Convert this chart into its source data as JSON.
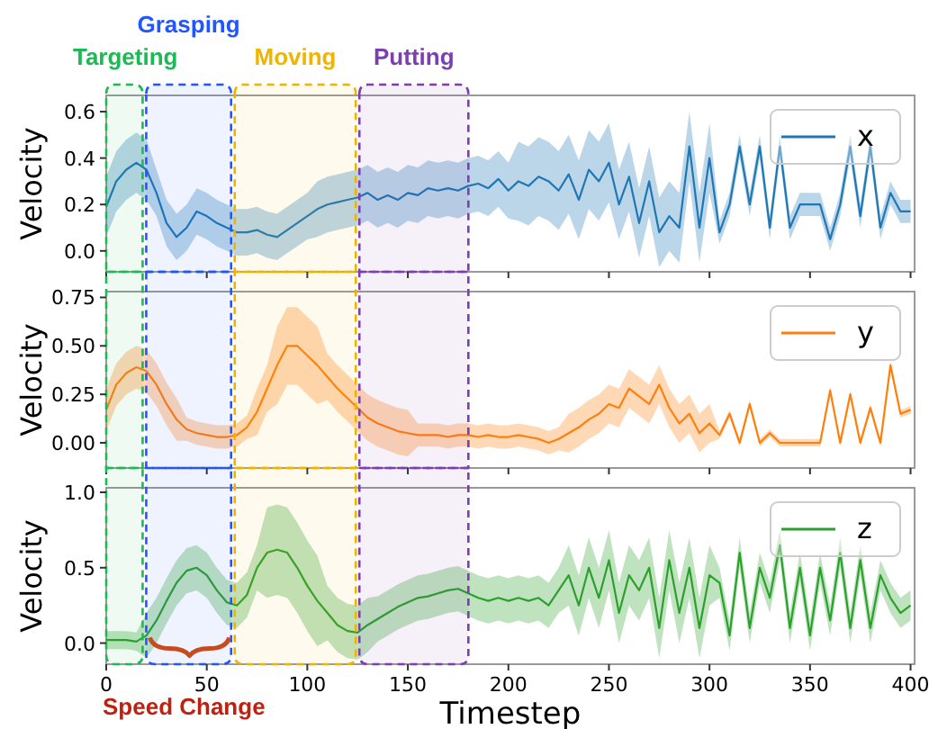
{
  "chart_data": [
    {
      "type": "line",
      "ylabel": "Velocity",
      "xlim": [
        0,
        402
      ],
      "ylim": [
        -0.09,
        0.67
      ],
      "xticks": [
        0,
        50,
        100,
        150,
        200,
        250,
        300,
        350,
        400
      ],
      "yticks": [
        {
          "value": 0,
          "label": "0.0"
        },
        {
          "value": 0.2,
          "label": "0.2"
        },
        {
          "value": 0.4,
          "label": "0.4"
        },
        {
          "value": 0.6,
          "label": "0.6"
        }
      ],
      "tick_labels": "y",
      "legend": "top right",
      "grid": false,
      "x": [
        0,
        5,
        10,
        15,
        20,
        25,
        30,
        35,
        40,
        45,
        50,
        55,
        60,
        65,
        70,
        75,
        80,
        85,
        90,
        95,
        100,
        105,
        110,
        115,
        120,
        125,
        130,
        135,
        140,
        145,
        150,
        155,
        160,
        165,
        170,
        175,
        180,
        185,
        190,
        195,
        200,
        205,
        210,
        215,
        220,
        225,
        230,
        235,
        240,
        245,
        250,
        255,
        260,
        265,
        270,
        275,
        280,
        285,
        290,
        295,
        300,
        305,
        310,
        315,
        320,
        325,
        330,
        335,
        340,
        345,
        350,
        355,
        360,
        365,
        370,
        375,
        380,
        385,
        390,
        395,
        400
      ],
      "series": [
        {
          "name": "x",
          "color": "#1f77b4",
          "values": [
            0.19,
            0.3,
            0.35,
            0.38,
            0.35,
            0.25,
            0.12,
            0.06,
            0.1,
            0.17,
            0.15,
            0.12,
            0.1,
            0.08,
            0.08,
            0.09,
            0.07,
            0.06,
            0.09,
            0.12,
            0.15,
            0.18,
            0.2,
            0.21,
            0.22,
            0.23,
            0.25,
            0.22,
            0.24,
            0.22,
            0.25,
            0.24,
            0.27,
            0.26,
            0.27,
            0.26,
            0.28,
            0.29,
            0.27,
            0.31,
            0.26,
            0.3,
            0.28,
            0.32,
            0.3,
            0.26,
            0.33,
            0.22,
            0.35,
            0.3,
            0.38,
            0.2,
            0.32,
            0.12,
            0.3,
            0.08,
            0.15,
            0.1,
            0.45,
            0.1,
            0.4,
            0.08,
            0.2,
            0.45,
            0.2,
            0.45,
            0.1,
            0.45,
            0.1,
            0.2,
            0.2,
            0.2,
            0.05,
            0.2,
            0.45,
            0.15,
            0.45,
            0.1,
            0.25,
            0.17,
            0.17
          ],
          "lower": [
            0.06,
            0.17,
            0.22,
            0.25,
            0.22,
            0.15,
            0.02,
            -0.04,
            0,
            0.07,
            0.05,
            0.02,
            0,
            -0.02,
            -0.02,
            -0.01,
            -0.03,
            -0.04,
            -0.01,
            0.02,
            0.05,
            0.06,
            0.08,
            0.09,
            0.1,
            0.11,
            0.13,
            0.1,
            0.12,
            0.1,
            0.13,
            0.12,
            0.15,
            0.14,
            0.15,
            0.14,
            0.16,
            0.17,
            0.15,
            0.19,
            0.14,
            0.13,
            0.11,
            0.15,
            0.13,
            0.09,
            0.16,
            0.05,
            0.18,
            0.13,
            0.21,
            0.05,
            0.17,
            -0.03,
            0.15,
            -0.07,
            0,
            -0.05,
            0.3,
            -0.05,
            0.25,
            0.03,
            0.15,
            0.4,
            0.15,
            0.4,
            0.05,
            0.4,
            0.05,
            0.15,
            0.15,
            0.15,
            0,
            0.15,
            0.4,
            0.1,
            0.4,
            0.05,
            0.2,
            0.12,
            0.12
          ],
          "upper": [
            0.32,
            0.43,
            0.48,
            0.51,
            0.48,
            0.35,
            0.22,
            0.16,
            0.2,
            0.27,
            0.25,
            0.22,
            0.2,
            0.18,
            0.18,
            0.19,
            0.17,
            0.16,
            0.19,
            0.22,
            0.25,
            0.3,
            0.32,
            0.33,
            0.34,
            0.35,
            0.37,
            0.34,
            0.36,
            0.34,
            0.37,
            0.36,
            0.39,
            0.38,
            0.39,
            0.38,
            0.4,
            0.41,
            0.39,
            0.43,
            0.38,
            0.47,
            0.45,
            0.49,
            0.47,
            0.43,
            0.5,
            0.39,
            0.52,
            0.47,
            0.55,
            0.35,
            0.47,
            0.27,
            0.45,
            0.23,
            0.3,
            0.25,
            0.6,
            0.25,
            0.55,
            0.13,
            0.25,
            0.5,
            0.25,
            0.5,
            0.15,
            0.5,
            0.15,
            0.25,
            0.25,
            0.25,
            0.1,
            0.25,
            0.5,
            0.2,
            0.5,
            0.15,
            0.3,
            0.22,
            0.22
          ]
        }
      ],
      "bands": [
        {
          "axis": "x",
          "from": 0,
          "to": 19,
          "label": "Targeting",
          "color": "#1db954"
        },
        {
          "axis": "x",
          "from": 19,
          "to": 63,
          "label": "Grasping",
          "color": "#2155ff"
        },
        {
          "axis": "x",
          "from": 63,
          "to": 125,
          "label": "Moving",
          "color": "#f0b400"
        },
        {
          "axis": "x",
          "from": 125,
          "to": 181,
          "label": "Putting",
          "color": "#7b3fb0"
        }
      ]
    },
    {
      "type": "line",
      "ylabel": "Velocity",
      "xlim": [
        0,
        402
      ],
      "ylim": [
        -0.13,
        0.78
      ],
      "xticks": [
        0,
        50,
        100,
        150,
        200,
        250,
        300,
        350,
        400
      ],
      "yticks": [
        {
          "value": 0,
          "label": "0.00"
        },
        {
          "value": 0.25,
          "label": "0.25"
        },
        {
          "value": 0.5,
          "label": "0.50"
        },
        {
          "value": 0.75,
          "label": "0.75"
        }
      ],
      "tick_labels": "y",
      "legend": "top right",
      "grid": false,
      "x": [
        0,
        5,
        10,
        15,
        20,
        25,
        30,
        35,
        40,
        45,
        50,
        55,
        60,
        65,
        70,
        75,
        80,
        85,
        90,
        95,
        100,
        105,
        110,
        115,
        120,
        125,
        130,
        135,
        140,
        145,
        150,
        155,
        160,
        165,
        170,
        175,
        180,
        185,
        190,
        195,
        200,
        205,
        210,
        215,
        220,
        225,
        230,
        235,
        240,
        245,
        250,
        255,
        260,
        265,
        270,
        275,
        280,
        285,
        290,
        295,
        300,
        305,
        310,
        315,
        320,
        325,
        330,
        335,
        340,
        345,
        350,
        355,
        360,
        365,
        370,
        375,
        380,
        385,
        390,
        395,
        400
      ],
      "series": [
        {
          "name": "y",
          "color": "#ff7f0e",
          "values": [
            0.17,
            0.3,
            0.36,
            0.39,
            0.37,
            0.3,
            0.2,
            0.12,
            0.07,
            0.05,
            0.04,
            0.03,
            0.03,
            0.04,
            0.08,
            0.16,
            0.28,
            0.4,
            0.5,
            0.5,
            0.45,
            0.4,
            0.34,
            0.28,
            0.23,
            0.18,
            0.13,
            0.1,
            0.08,
            0.06,
            0.05,
            0.04,
            0.04,
            0.04,
            0.03,
            0.04,
            0.04,
            0.03,
            0.04,
            0.03,
            0.03,
            0.04,
            0.03,
            0.02,
            0,
            0.02,
            0.05,
            0.08,
            0.12,
            0.15,
            0.2,
            0.18,
            0.28,
            0.24,
            0.2,
            0.3,
            0.18,
            0.1,
            0.15,
            0.05,
            0.1,
            0.04,
            0.15,
            0,
            0.2,
            0,
            0.05,
            0,
            0,
            0,
            0,
            0,
            0.27,
            0,
            0.25,
            0,
            0.18,
            0,
            0.4,
            0.15,
            0.17
          ],
          "lower": [
            0.06,
            0.19,
            0.25,
            0.28,
            0.26,
            0.19,
            0.09,
            0.01,
            0.01,
            -0.01,
            -0.02,
            -0.03,
            -0.03,
            -0.02,
            0.02,
            0.04,
            0.16,
            0.2,
            0.3,
            0.3,
            0.25,
            0.2,
            0.22,
            0.16,
            0.11,
            0.06,
            0.01,
            -0.02,
            -0.04,
            -0.06,
            -0.07,
            -0.02,
            -0.02,
            -0.02,
            -0.03,
            -0.02,
            -0.02,
            -0.03,
            -0.02,
            -0.03,
            -0.03,
            -0.02,
            -0.03,
            -0.04,
            -0.06,
            -0.04,
            -0.05,
            -0.02,
            0.02,
            0.05,
            0.1,
            0.08,
            0.18,
            0.14,
            0.1,
            0.2,
            0.08,
            0,
            0.05,
            -0.05,
            0,
            0.02,
            0.13,
            -0.02,
            0.18,
            -0.02,
            0.03,
            -0.02,
            -0.02,
            -0.02,
            -0.02,
            -0.02,
            0.25,
            -0.02,
            0.23,
            -0.02,
            0.16,
            -0.02,
            0.38,
            0.13,
            0.15
          ],
          "upper": [
            0.28,
            0.41,
            0.47,
            0.5,
            0.48,
            0.41,
            0.31,
            0.23,
            0.13,
            0.11,
            0.1,
            0.09,
            0.09,
            0.1,
            0.14,
            0.28,
            0.4,
            0.6,
            0.7,
            0.7,
            0.65,
            0.6,
            0.46,
            0.4,
            0.35,
            0.3,
            0.25,
            0.22,
            0.2,
            0.18,
            0.17,
            0.1,
            0.1,
            0.1,
            0.09,
            0.1,
            0.1,
            0.09,
            0.1,
            0.09,
            0.09,
            0.1,
            0.09,
            0.08,
            0.06,
            0.08,
            0.15,
            0.18,
            0.22,
            0.25,
            0.3,
            0.28,
            0.38,
            0.34,
            0.3,
            0.4,
            0.28,
            0.2,
            0.25,
            0.15,
            0.2,
            0.06,
            0.17,
            0.02,
            0.22,
            0.02,
            0.07,
            0.02,
            0.02,
            0.02,
            0.02,
            0.02,
            0.29,
            0.02,
            0.27,
            0.02,
            0.2,
            0.02,
            0.42,
            0.17,
            0.19
          ]
        }
      ],
      "bands": [
        {
          "axis": "x",
          "from": 0,
          "to": 19,
          "color": "#1db954"
        },
        {
          "axis": "x",
          "from": 19,
          "to": 63,
          "color": "#2155ff"
        },
        {
          "axis": "x",
          "from": 63,
          "to": 125,
          "color": "#f0b400"
        },
        {
          "axis": "x",
          "from": 125,
          "to": 181,
          "color": "#7b3fb0"
        }
      ]
    },
    {
      "type": "line",
      "ylabel": "Velocity",
      "xlabel": "Timestep",
      "xlim": [
        0,
        402
      ],
      "ylim": [
        -0.14,
        1.03
      ],
      "xticks": [
        0,
        50,
        100,
        150,
        200,
        250,
        300,
        350,
        400
      ],
      "yticks": [
        {
          "value": 0,
          "label": "0.0"
        },
        {
          "value": 0.5,
          "label": "0.5"
        },
        {
          "value": 1,
          "label": "1.0"
        }
      ],
      "legend": "top right",
      "grid": false,
      "annotations": [
        "Speed Change"
      ],
      "x": [
        0,
        5,
        10,
        15,
        20,
        25,
        30,
        35,
        40,
        45,
        50,
        55,
        60,
        65,
        70,
        75,
        80,
        85,
        90,
        95,
        100,
        105,
        110,
        115,
        120,
        125,
        130,
        135,
        140,
        145,
        150,
        155,
        160,
        165,
        170,
        175,
        180,
        185,
        190,
        195,
        200,
        205,
        210,
        215,
        220,
        225,
        230,
        235,
        240,
        245,
        250,
        255,
        260,
        265,
        270,
        275,
        280,
        285,
        290,
        295,
        300,
        305,
        310,
        315,
        320,
        325,
        330,
        335,
        340,
        345,
        350,
        355,
        360,
        365,
        370,
        375,
        380,
        385,
        390,
        395,
        400
      ],
      "series": [
        {
          "name": "z",
          "color": "#2ca02c",
          "values": [
            0.02,
            0.02,
            0.02,
            0.01,
            0.05,
            0.15,
            0.28,
            0.4,
            0.48,
            0.5,
            0.45,
            0.35,
            0.27,
            0.25,
            0.32,
            0.5,
            0.6,
            0.62,
            0.6,
            0.5,
            0.38,
            0.28,
            0.2,
            0.12,
            0.08,
            0.07,
            0.12,
            0.16,
            0.2,
            0.24,
            0.27,
            0.3,
            0.31,
            0.33,
            0.35,
            0.36,
            0.33,
            0.3,
            0.28,
            0.3,
            0.28,
            0.3,
            0.28,
            0.3,
            0.25,
            0.35,
            0.45,
            0.25,
            0.5,
            0.3,
            0.55,
            0.2,
            0.45,
            0.35,
            0.5,
            0.1,
            0.55,
            0.2,
            0.5,
            0.1,
            0.45,
            0.4,
            0.05,
            0.6,
            0.1,
            0.5,
            0.3,
            0.65,
            0.1,
            0.5,
            0.05,
            0.5,
            0.15,
            0.6,
            0.1,
            0.55,
            0.1,
            0.45,
            0.3,
            0.2,
            0.25
          ],
          "lower": [
            -0.04,
            -0.04,
            -0.04,
            -0.05,
            -0.1,
            0,
            0.13,
            0.25,
            0.33,
            0.35,
            0.3,
            0.2,
            0.12,
            0.1,
            0.17,
            0.35,
            0.3,
            0.32,
            0.3,
            0.2,
            0.08,
            -0.02,
            0.02,
            -0.06,
            -0.1,
            -0.11,
            -0.06,
            0.01,
            0.05,
            0.09,
            0.12,
            0.15,
            0.16,
            0.18,
            0.2,
            0.21,
            0.18,
            0.15,
            0.13,
            0.15,
            0.13,
            0.15,
            0.13,
            0.15,
            0.1,
            0.2,
            0.25,
            0.05,
            0.3,
            0.1,
            0.35,
            0,
            0.25,
            0.15,
            0.3,
            -0.1,
            0.35,
            0,
            0.3,
            -0.1,
            0.25,
            0.3,
            -0.05,
            0.5,
            0,
            0.4,
            0.2,
            0.55,
            0,
            0.4,
            -0.05,
            0.4,
            0.05,
            0.5,
            0,
            0.45,
            0,
            0.35,
            0.2,
            0.1,
            0.15
          ],
          "upper": [
            0.08,
            0.08,
            0.08,
            0.07,
            0.2,
            0.3,
            0.43,
            0.55,
            0.63,
            0.65,
            0.6,
            0.5,
            0.42,
            0.4,
            0.47,
            0.65,
            0.9,
            0.92,
            0.9,
            0.8,
            0.68,
            0.58,
            0.38,
            0.3,
            0.26,
            0.25,
            0.3,
            0.31,
            0.35,
            0.39,
            0.42,
            0.45,
            0.46,
            0.48,
            0.5,
            0.51,
            0.48,
            0.45,
            0.43,
            0.45,
            0.43,
            0.45,
            0.43,
            0.45,
            0.4,
            0.5,
            0.65,
            0.45,
            0.7,
            0.5,
            0.75,
            0.4,
            0.65,
            0.55,
            0.7,
            0.3,
            0.75,
            0.4,
            0.7,
            0.3,
            0.65,
            0.5,
            0.15,
            0.7,
            0.2,
            0.6,
            0.4,
            0.75,
            0.2,
            0.6,
            0.15,
            0.6,
            0.25,
            0.7,
            0.2,
            0.65,
            0.2,
            0.55,
            0.4,
            0.3,
            0.35
          ]
        }
      ],
      "bands": [
        {
          "axis": "x",
          "from": 0,
          "to": 19,
          "color": "#1db954"
        },
        {
          "axis": "x",
          "from": 19,
          "to": 63,
          "color": "#2155ff"
        },
        {
          "axis": "x",
          "from": 63,
          "to": 125,
          "color": "#f0b400"
        },
        {
          "axis": "x",
          "from": 125,
          "to": 181,
          "color": "#7b3fb0"
        }
      ]
    }
  ]
}
